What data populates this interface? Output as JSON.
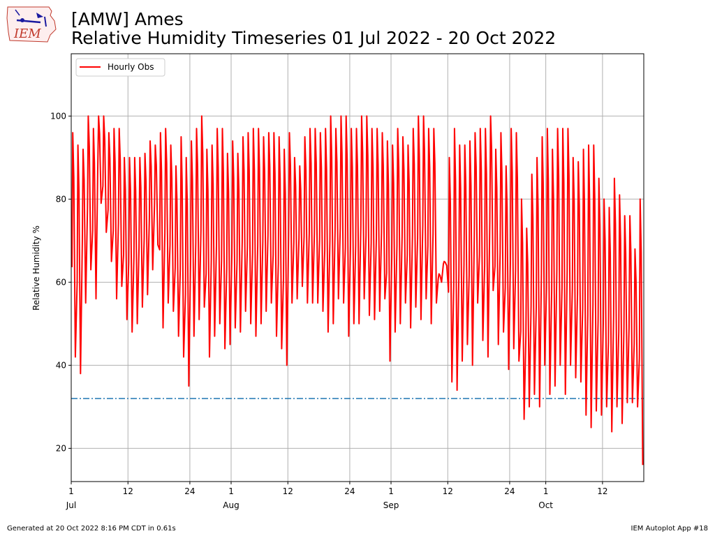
{
  "header": {
    "logo_text": "IEM",
    "title_line1": "[AMW] Ames",
    "title_line2": "Relative Humidity Timeseries 01 Jul 2022 - 20 Oct 2022"
  },
  "footer": {
    "generated": "Generated at 20 Oct 2022 8:16 PM CDT in 0.61s",
    "app": "IEM Autoplot App #18"
  },
  "colors": {
    "series": "#ff0000",
    "threshold": "#1f77b4",
    "grid": "#b0b0b0"
  },
  "chart_data": {
    "type": "line",
    "title": "[AMW] Ames\nRelative Humidity Timeseries 01 Jul 2022 - 20 Oct 2022",
    "ylabel": "Relative Humidity %",
    "xlabel": "",
    "xlim": [
      "2022-07-01",
      "2022-10-20"
    ],
    "ylim": [
      12,
      115
    ],
    "yticks": [
      20,
      40,
      60,
      80,
      100
    ],
    "xticks": [
      {
        "date": "2022-07-01",
        "label": "1",
        "month": "Jul"
      },
      {
        "date": "2022-07-12",
        "label": "12",
        "month": ""
      },
      {
        "date": "2022-07-24",
        "label": "24",
        "month": ""
      },
      {
        "date": "2022-08-01",
        "label": "1",
        "month": "Aug"
      },
      {
        "date": "2022-08-12",
        "label": "12",
        "month": ""
      },
      {
        "date": "2022-08-24",
        "label": "24",
        "month": ""
      },
      {
        "date": "2022-09-01",
        "label": "1",
        "month": "Sep"
      },
      {
        "date": "2022-09-12",
        "label": "12",
        "month": ""
      },
      {
        "date": "2022-09-24",
        "label": "24",
        "month": ""
      },
      {
        "date": "2022-10-01",
        "label": "1",
        "month": "Oct"
      },
      {
        "date": "2022-10-12",
        "label": "12",
        "month": ""
      }
    ],
    "grid": true,
    "legend": {
      "placement": "top-left",
      "entries": [
        "Hourly Obs"
      ]
    },
    "threshold_line": {
      "value": 32,
      "style": "dash-dot"
    },
    "series": [
      {
        "name": "Hourly Obs",
        "note": "daily min/max envelope of hourly observations",
        "daily": [
          [
            "2022-07-01",
            42,
            96
          ],
          [
            "2022-07-02",
            38,
            93
          ],
          [
            "2022-07-03",
            55,
            92
          ],
          [
            "2022-07-04",
            63,
            100
          ],
          [
            "2022-07-05",
            56,
            97
          ],
          [
            "2022-07-06",
            79,
            100
          ],
          [
            "2022-07-07",
            72,
            100
          ],
          [
            "2022-07-08",
            65,
            96
          ],
          [
            "2022-07-09",
            56,
            97
          ],
          [
            "2022-07-10",
            59,
            97
          ],
          [
            "2022-07-11",
            51,
            90
          ],
          [
            "2022-07-12",
            48,
            90
          ],
          [
            "2022-07-13",
            50,
            90
          ],
          [
            "2022-07-14",
            54,
            90
          ],
          [
            "2022-07-15",
            57,
            91
          ],
          [
            "2022-07-16",
            63,
            94
          ],
          [
            "2022-07-17",
            69,
            93
          ],
          [
            "2022-07-18",
            49,
            96
          ],
          [
            "2022-07-19",
            55,
            97
          ],
          [
            "2022-07-20",
            53,
            93
          ],
          [
            "2022-07-21",
            47,
            88
          ],
          [
            "2022-07-22",
            42,
            95
          ],
          [
            "2022-07-23",
            35,
            90
          ],
          [
            "2022-07-24",
            47,
            94
          ],
          [
            "2022-07-25",
            51,
            97
          ],
          [
            "2022-07-26",
            54,
            100
          ],
          [
            "2022-07-27",
            42,
            92
          ],
          [
            "2022-07-28",
            47,
            93
          ],
          [
            "2022-07-29",
            50,
            97
          ],
          [
            "2022-07-30",
            44,
            97
          ],
          [
            "2022-07-31",
            45,
            91
          ],
          [
            "2022-08-01",
            49,
            94
          ],
          [
            "2022-08-02",
            48,
            91
          ],
          [
            "2022-08-03",
            53,
            95
          ],
          [
            "2022-08-04",
            50,
            96
          ],
          [
            "2022-08-05",
            47,
            97
          ],
          [
            "2022-08-06",
            50,
            97
          ],
          [
            "2022-08-07",
            53,
            95
          ],
          [
            "2022-08-08",
            55,
            96
          ],
          [
            "2022-08-09",
            47,
            96
          ],
          [
            "2022-08-10",
            44,
            95
          ],
          [
            "2022-08-11",
            40,
            92
          ],
          [
            "2022-08-12",
            55,
            96
          ],
          [
            "2022-08-13",
            56,
            90
          ],
          [
            "2022-08-14",
            59,
            88
          ],
          [
            "2022-08-15",
            55,
            95
          ],
          [
            "2022-08-16",
            55,
            97
          ],
          [
            "2022-08-17",
            55,
            97
          ],
          [
            "2022-08-18",
            53,
            96
          ],
          [
            "2022-08-19",
            48,
            97
          ],
          [
            "2022-08-20",
            50,
            100
          ],
          [
            "2022-08-21",
            56,
            97
          ],
          [
            "2022-08-22",
            55,
            100
          ],
          [
            "2022-08-23",
            47,
            100
          ],
          [
            "2022-08-24",
            50,
            97
          ],
          [
            "2022-08-25",
            50,
            97
          ],
          [
            "2022-08-26",
            56,
            100
          ],
          [
            "2022-08-27",
            52,
            100
          ],
          [
            "2022-08-28",
            51,
            97
          ],
          [
            "2022-08-29",
            53,
            97
          ],
          [
            "2022-08-30",
            56,
            96
          ],
          [
            "2022-08-31",
            41,
            94
          ],
          [
            "2022-09-01",
            48,
            93
          ],
          [
            "2022-09-02",
            50,
            97
          ],
          [
            "2022-09-03",
            55,
            95
          ],
          [
            "2022-09-04",
            49,
            93
          ],
          [
            "2022-09-05",
            54,
            97
          ],
          [
            "2022-09-06",
            51,
            100
          ],
          [
            "2022-09-07",
            56,
            100
          ],
          [
            "2022-09-08",
            50,
            97
          ],
          [
            "2022-09-09",
            55,
            97
          ],
          [
            "2022-09-10",
            60,
            62
          ],
          [
            "2022-09-11",
            64,
            65
          ],
          [
            "2022-09-12",
            36,
            90
          ],
          [
            "2022-09-13",
            34,
            97
          ],
          [
            "2022-09-14",
            41,
            93
          ],
          [
            "2022-09-15",
            45,
            93
          ],
          [
            "2022-09-16",
            40,
            94
          ],
          [
            "2022-09-17",
            55,
            96
          ],
          [
            "2022-09-18",
            46,
            97
          ],
          [
            "2022-09-19",
            42,
            97
          ],
          [
            "2022-09-20",
            58,
            100
          ],
          [
            "2022-09-21",
            45,
            92
          ],
          [
            "2022-09-22",
            48,
            96
          ],
          [
            "2022-09-23",
            39,
            88
          ],
          [
            "2022-09-24",
            44,
            97
          ],
          [
            "2022-09-25",
            41,
            96
          ],
          [
            "2022-09-26",
            27,
            80
          ],
          [
            "2022-09-27",
            30,
            73
          ],
          [
            "2022-09-28",
            33,
            86
          ],
          [
            "2022-09-29",
            30,
            90
          ],
          [
            "2022-09-30",
            40,
            95
          ],
          [
            "2022-10-01",
            33,
            97
          ],
          [
            "2022-10-02",
            35,
            92
          ],
          [
            "2022-10-03",
            40,
            97
          ],
          [
            "2022-10-04",
            33,
            97
          ],
          [
            "2022-10-05",
            40,
            97
          ],
          [
            "2022-10-06",
            37,
            90
          ],
          [
            "2022-10-07",
            36,
            89
          ],
          [
            "2022-10-08",
            28,
            92
          ],
          [
            "2022-10-09",
            25,
            93
          ],
          [
            "2022-10-10",
            29,
            93
          ],
          [
            "2022-10-11",
            28,
            85
          ],
          [
            "2022-10-12",
            30,
            80
          ],
          [
            "2022-10-13",
            24,
            78
          ],
          [
            "2022-10-14",
            30,
            85
          ],
          [
            "2022-10-15",
            26,
            81
          ],
          [
            "2022-10-16",
            31,
            76
          ],
          [
            "2022-10-17",
            31,
            76
          ],
          [
            "2022-10-18",
            30,
            68
          ],
          [
            "2022-10-19",
            16,
            80
          ],
          [
            "2022-10-20",
            27,
            63
          ]
        ]
      }
    ]
  }
}
